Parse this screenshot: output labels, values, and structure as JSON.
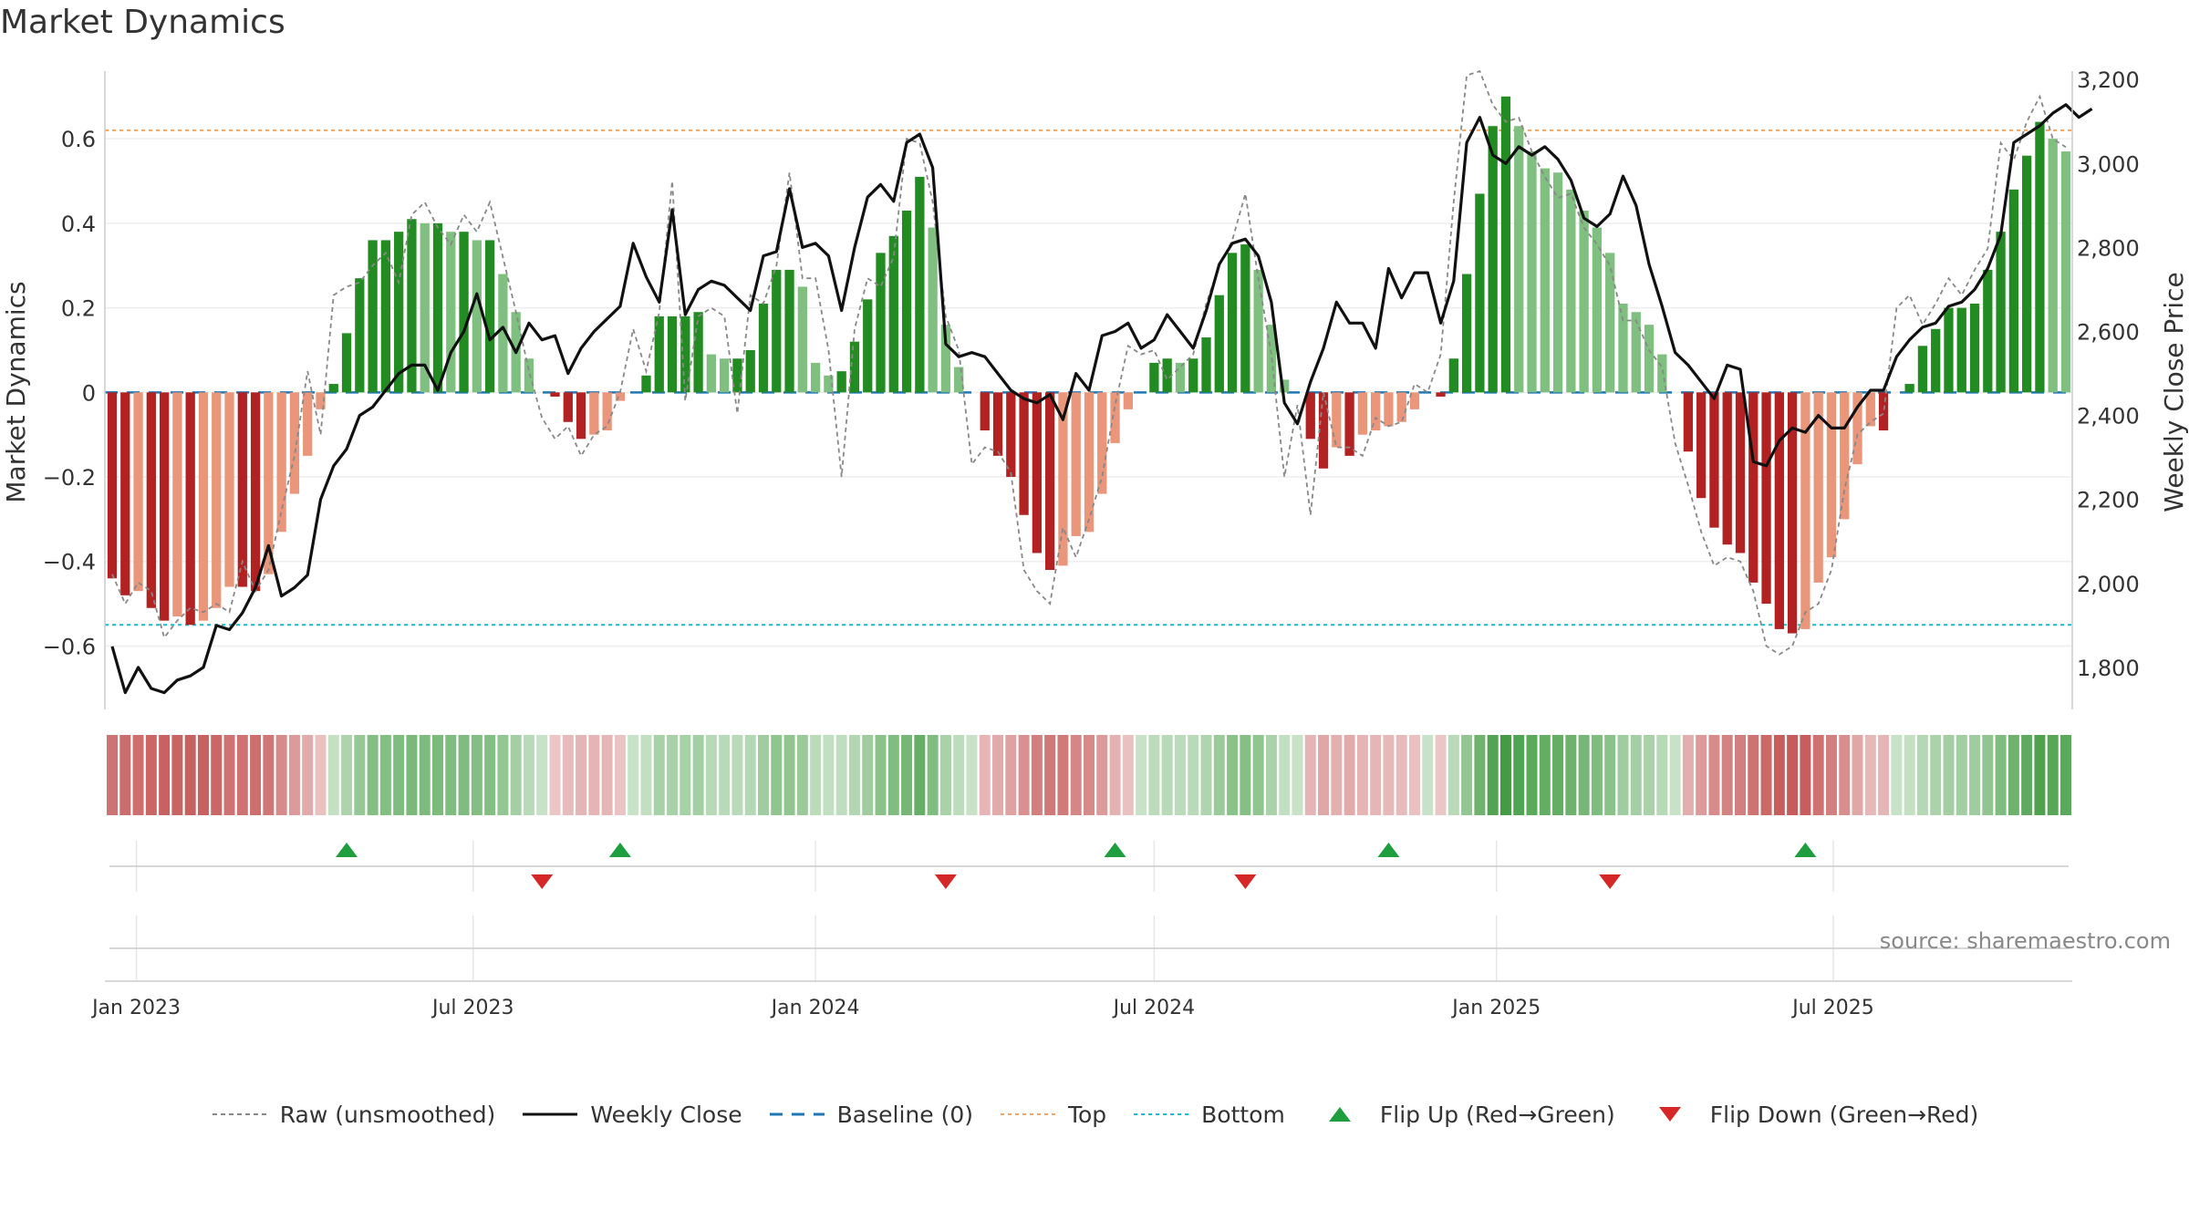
{
  "title": "Market Dynamics",
  "colors": {
    "strong_green": "#228b22",
    "light_green": "#7fbf7f",
    "strong_red": "#b22222",
    "light_red": "#e9967a",
    "raw_line": "#888888",
    "close_line": "#111111",
    "baseline": "#1f77b4",
    "top": "#f4a460",
    "bottom": "#17becf",
    "flip_up": "#1e9e3e",
    "flip_down": "#d62728"
  },
  "chart_data": {
    "type": "bar",
    "x_start_week": "2022-12-19",
    "x_end_week": "2025-09-15",
    "series": [
      {
        "name": "Market Dynamics",
        "values": [
          -0.44,
          -0.48,
          -0.47,
          -0.51,
          -0.54,
          -0.53,
          -0.55,
          -0.54,
          -0.51,
          -0.46,
          -0.46,
          -0.47,
          -0.43,
          -0.33,
          -0.24,
          -0.15,
          -0.04,
          0.02,
          0.14,
          0.27,
          0.36,
          0.36,
          0.38,
          0.41,
          0.4,
          0.4,
          0.38,
          0.38,
          0.36,
          0.36,
          0.28,
          0.19,
          0.08,
          0.0,
          -0.01,
          -0.07,
          -0.11,
          -0.1,
          -0.09,
          -0.02,
          0.0,
          0.04,
          0.18,
          0.18,
          0.18,
          0.19,
          0.09,
          0.08,
          0.08,
          0.1,
          0.21,
          0.29,
          0.29,
          0.25,
          0.07,
          0.04,
          0.05,
          0.12,
          0.22,
          0.33,
          0.37,
          0.43,
          0.51,
          0.39,
          0.16,
          0.06,
          0.0,
          -0.09,
          -0.15,
          -0.2,
          -0.29,
          -0.38,
          -0.42,
          -0.41,
          -0.34,
          -0.33,
          -0.24,
          -0.12,
          -0.04,
          0.0,
          0.07,
          0.08,
          0.07,
          0.08,
          0.13,
          0.23,
          0.33,
          0.35,
          0.29,
          0.16,
          0.03,
          0.0,
          -0.11,
          -0.18,
          -0.13,
          -0.15,
          -0.1,
          -0.09,
          -0.08,
          -0.07,
          -0.04,
          0.0,
          -0.01,
          0.08,
          0.28,
          0.47,
          0.63,
          0.7,
          0.63,
          0.57,
          0.53,
          0.52,
          0.48,
          0.43,
          0.39,
          0.33,
          0.21,
          0.19,
          0.16,
          0.09,
          0.0,
          -0.14,
          -0.25,
          -0.32,
          -0.36,
          -0.38,
          -0.45,
          -0.5,
          -0.56,
          -0.57,
          -0.56,
          -0.45,
          -0.39,
          -0.3,
          -0.17,
          -0.08,
          -0.09,
          0.0,
          0.02,
          0.11,
          0.15,
          0.2,
          0.2,
          0.21,
          0.29,
          0.38,
          0.48,
          0.56,
          0.64,
          0.6,
          0.57
        ]
      },
      {
        "name": "Weekly Close",
        "values": [
          1850,
          1740,
          1800,
          1750,
          1740,
          1770,
          1780,
          1800,
          1900,
          1890,
          1930,
          1990,
          2090,
          1970,
          1990,
          2020,
          2200,
          2280,
          2320,
          2400,
          2420,
          2460,
          2500,
          2520,
          2520,
          2460,
          2550,
          2600,
          2690,
          2580,
          2610,
          2550,
          2620,
          2580,
          2590,
          2500,
          2560,
          2600,
          2630,
          2660,
          2810,
          2730,
          2670,
          2890,
          2640,
          2700,
          2720,
          2710,
          2680,
          2650,
          2780,
          2790,
          2940,
          2800,
          2810,
          2780,
          2650,
          2800,
          2920,
          2950,
          2910,
          3050,
          3070,
          2990,
          2570,
          2540,
          2550,
          2540,
          2500,
          2460,
          2440,
          2430,
          2450,
          2390,
          2500,
          2460,
          2590,
          2600,
          2620,
          2560,
          2580,
          2640,
          2600,
          2560,
          2650,
          2760,
          2810,
          2820,
          2780,
          2670,
          2430,
          2380,
          2480,
          2560,
          2670,
          2620,
          2620,
          2560,
          2750,
          2680,
          2740,
          2740,
          2620,
          2720,
          3050,
          3110,
          3020,
          3000,
          3040,
          3020,
          3040,
          3010,
          2960,
          2870,
          2850,
          2880,
          2970,
          2900,
          2760,
          2660,
          2550,
          2520,
          2480,
          2440,
          2520,
          2510,
          2290,
          2280,
          2340,
          2370,
          2360,
          2400,
          2370,
          2370,
          2420,
          2460,
          2460,
          2540,
          2580,
          2610,
          2620,
          2660,
          2670,
          2700,
          2750,
          2830,
          3050,
          3070,
          3090,
          3120,
          3140,
          3110,
          3130
        ]
      },
      {
        "name": "Raw (unsmoothed)",
        "values": [
          -0.43,
          -0.5,
          -0.45,
          -0.47,
          -0.58,
          -0.54,
          -0.51,
          -0.52,
          -0.5,
          -0.52,
          -0.4,
          -0.47,
          -0.42,
          -0.28,
          -0.15,
          0.05,
          -0.1,
          0.23,
          0.25,
          0.26,
          0.3,
          0.33,
          0.26,
          0.42,
          0.45,
          0.39,
          0.35,
          0.42,
          0.38,
          0.45,
          0.32,
          0.19,
          0.05,
          -0.06,
          -0.11,
          -0.08,
          -0.15,
          -0.1,
          -0.08,
          0.0,
          0.15,
          0.05,
          0.19,
          0.5,
          -0.02,
          0.18,
          0.2,
          0.18,
          -0.05,
          0.23,
          0.21,
          0.3,
          0.52,
          0.27,
          0.27,
          0.1,
          -0.2,
          0.15,
          0.27,
          0.25,
          0.32,
          0.6,
          0.59,
          0.45,
          0.18,
          0.1,
          -0.17,
          -0.13,
          -0.14,
          -0.19,
          -0.42,
          -0.47,
          -0.5,
          -0.32,
          -0.39,
          -0.3,
          -0.2,
          -0.03,
          0.11,
          0.09,
          0.1,
          0.03,
          0.06,
          0.09,
          0.21,
          0.3,
          0.36,
          0.47,
          0.27,
          0.09,
          -0.2,
          -0.03,
          -0.29,
          0.0,
          -0.13,
          -0.13,
          -0.15,
          -0.06,
          -0.08,
          -0.07,
          0.02,
          0.0,
          0.09,
          0.45,
          0.75,
          0.76,
          0.68,
          0.64,
          0.65,
          0.57,
          0.51,
          0.46,
          0.47,
          0.39,
          0.35,
          0.3,
          0.17,
          0.17,
          0.1,
          0.06,
          -0.12,
          -0.22,
          -0.33,
          -0.41,
          -0.39,
          -0.4,
          -0.47,
          -0.6,
          -0.62,
          -0.6,
          -0.52,
          -0.5,
          -0.42,
          -0.23,
          -0.1,
          -0.07,
          -0.05,
          0.2,
          0.23,
          0.16,
          0.21,
          0.27,
          0.23,
          0.29,
          0.34,
          0.59,
          0.55,
          0.64,
          0.7,
          0.6,
          0.58
        ]
      }
    ],
    "ylabel": "Market Dynamics",
    "y2label": "Weekly Close Price",
    "ylim": [
      -0.75,
      0.76
    ],
    "y2lim": [
      1700,
      3220
    ],
    "yticks": [
      "0.6",
      "0.4",
      "0.2",
      "0",
      "−0.2",
      "−0.4",
      "−0.6"
    ],
    "y2ticks": [
      "3,200",
      "3,000",
      "2,800",
      "2,600",
      "2,400",
      "2,200",
      "2,000",
      "1,800"
    ],
    "xticks": [
      "Jan 2023",
      "Jul 2023",
      "Jan 2024",
      "Jul 2024",
      "Jan 2025",
      "Jul 2025"
    ],
    "top_line": 0.62,
    "bottom_line": -0.55,
    "baseline": 0,
    "flips": [
      {
        "type": "up",
        "date": "2023-04-24"
      },
      {
        "type": "up",
        "date": "2023-09-18"
      },
      {
        "type": "up",
        "date": "2024-06-10"
      },
      {
        "type": "up",
        "date": "2024-11-04"
      },
      {
        "type": "up",
        "date": "2025-06-16"
      },
      {
        "type": "down",
        "date": "2023-08-07"
      },
      {
        "type": "down",
        "date": "2024-03-11"
      },
      {
        "type": "down",
        "date": "2024-08-19"
      },
      {
        "type": "down",
        "date": "2025-03-03"
      }
    ],
    "grid": true,
    "legend_position": "bottom"
  },
  "legend": {
    "raw": "Raw (unsmoothed)",
    "close": "Weekly Close",
    "baseline": "Baseline (0)",
    "top": "Top",
    "bottom": "Bottom",
    "flip_up": "Flip Up (Red→Green)",
    "flip_down": "Flip Down (Green→Red)"
  },
  "source": "source: sharemaestro.com"
}
